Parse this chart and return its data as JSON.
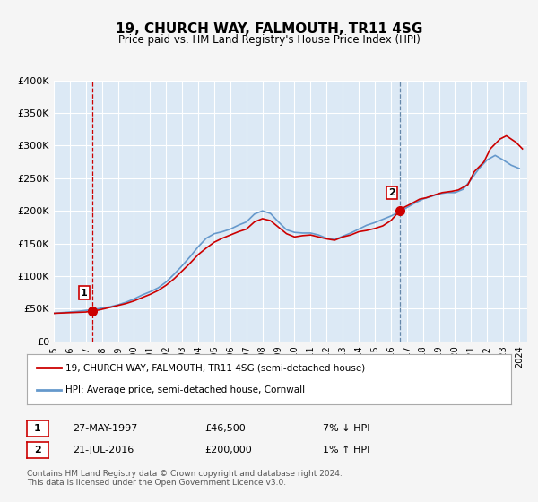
{
  "title": "19, CHURCH WAY, FALMOUTH, TR11 4SG",
  "subtitle": "Price paid vs. HM Land Registry's House Price Index (HPI)",
  "title_fontsize": 12,
  "subtitle_fontsize": 9.5,
  "legend_line1": "19, CHURCH WAY, FALMOUTH, TR11 4SG (semi-detached house)",
  "legend_line2": "HPI: Average price, semi-detached house, Cornwall",
  "note1_num": "1",
  "note1_date": "27-MAY-1997",
  "note1_price": "£46,500",
  "note1_hpi": "7% ↓ HPI",
  "note2_num": "2",
  "note2_date": "21-JUL-2016",
  "note2_price": "£200,000",
  "note2_hpi": "1% ↑ HPI",
  "footer": "Contains HM Land Registry data © Crown copyright and database right 2024.\nThis data is licensed under the Open Government Licence v3.0.",
  "color_property": "#cc0000",
  "color_hpi": "#6699cc",
  "background_plot": "#dce9f5",
  "background_fig": "#f5f5f5",
  "xmin": 1995.0,
  "xmax": 2024.5,
  "ymin": 0,
  "ymax": 400000,
  "yticks": [
    0,
    50000,
    100000,
    150000,
    200000,
    250000,
    300000,
    350000,
    400000
  ],
  "ytick_labels": [
    "£0",
    "£50K",
    "£100K",
    "£150K",
    "£200K",
    "£250K",
    "£300K",
    "£350K",
    "£400K"
  ],
  "xticks": [
    1995,
    1996,
    1997,
    1998,
    1999,
    2000,
    2001,
    2002,
    2003,
    2004,
    2005,
    2006,
    2007,
    2008,
    2009,
    2010,
    2011,
    2012,
    2013,
    2014,
    2015,
    2016,
    2017,
    2018,
    2019,
    2020,
    2021,
    2022,
    2023,
    2024
  ],
  "sale1_x": 1997.4,
  "sale1_y": 46500,
  "sale2_x": 2016.55,
  "sale2_y": 200000,
  "vline1_x": 1997.4,
  "vline2_x": 2016.55,
  "property_x": [
    1995.0,
    1995.5,
    1996.0,
    1996.5,
    1997.0,
    1997.4,
    1997.8,
    1998.5,
    1999.0,
    1999.5,
    2000.0,
    2000.5,
    2001.0,
    2001.5,
    2002.0,
    2002.5,
    2003.0,
    2003.5,
    2004.0,
    2004.5,
    2005.0,
    2005.5,
    2006.0,
    2006.5,
    2007.0,
    2007.5,
    2008.0,
    2008.5,
    2009.0,
    2009.5,
    2010.0,
    2010.5,
    2011.0,
    2011.5,
    2012.0,
    2012.5,
    2013.0,
    2013.5,
    2014.0,
    2014.5,
    2015.0,
    2015.5,
    2016.0,
    2016.55,
    2016.8,
    2017.2,
    2017.8,
    2018.2,
    2018.8,
    2019.2,
    2019.8,
    2020.2,
    2020.8,
    2021.2,
    2021.8,
    2022.2,
    2022.8,
    2023.2,
    2023.8,
    2024.2
  ],
  "property_y": [
    43000,
    43500,
    44000,
    44500,
    45000,
    46500,
    48000,
    52000,
    55000,
    58000,
    62000,
    67000,
    72000,
    78000,
    86000,
    96000,
    108000,
    120000,
    133000,
    143000,
    152000,
    158000,
    163000,
    168000,
    172000,
    183000,
    188000,
    185000,
    175000,
    165000,
    160000,
    162000,
    163000,
    160000,
    157000,
    155000,
    160000,
    163000,
    168000,
    170000,
    173000,
    177000,
    185000,
    200000,
    205000,
    210000,
    218000,
    220000,
    225000,
    228000,
    230000,
    232000,
    240000,
    260000,
    275000,
    295000,
    310000,
    315000,
    305000,
    295000
  ],
  "hpi_x": [
    1995.0,
    1995.5,
    1996.0,
    1996.5,
    1997.0,
    1997.5,
    1998.0,
    1998.5,
    1999.0,
    1999.5,
    2000.0,
    2000.5,
    2001.0,
    2001.5,
    2002.0,
    2002.5,
    2003.0,
    2003.5,
    2004.0,
    2004.5,
    2005.0,
    2005.5,
    2006.0,
    2006.5,
    2007.0,
    2007.5,
    2008.0,
    2008.5,
    2009.0,
    2009.5,
    2010.0,
    2010.5,
    2011.0,
    2011.5,
    2012.0,
    2012.5,
    2013.0,
    2013.5,
    2014.0,
    2014.5,
    2015.0,
    2015.5,
    2016.0,
    2016.5,
    2017.0,
    2017.5,
    2018.0,
    2018.5,
    2019.0,
    2019.5,
    2020.0,
    2020.5,
    2021.0,
    2021.5,
    2022.0,
    2022.5,
    2023.0,
    2023.5,
    2024.0
  ],
  "hpi_y": [
    43000,
    44000,
    45000,
    46000,
    47500,
    49000,
    51000,
    53000,
    56000,
    60000,
    65000,
    71000,
    76000,
    82000,
    91000,
    103000,
    116000,
    130000,
    145000,
    158000,
    165000,
    168000,
    172000,
    178000,
    183000,
    195000,
    200000,
    196000,
    183000,
    171000,
    167000,
    166000,
    166000,
    163000,
    158000,
    156000,
    161000,
    166000,
    172000,
    178000,
    182000,
    187000,
    192000,
    198000,
    205000,
    212000,
    218000,
    222000,
    226000,
    228000,
    228000,
    233000,
    248000,
    265000,
    278000,
    285000,
    278000,
    270000,
    265000
  ]
}
